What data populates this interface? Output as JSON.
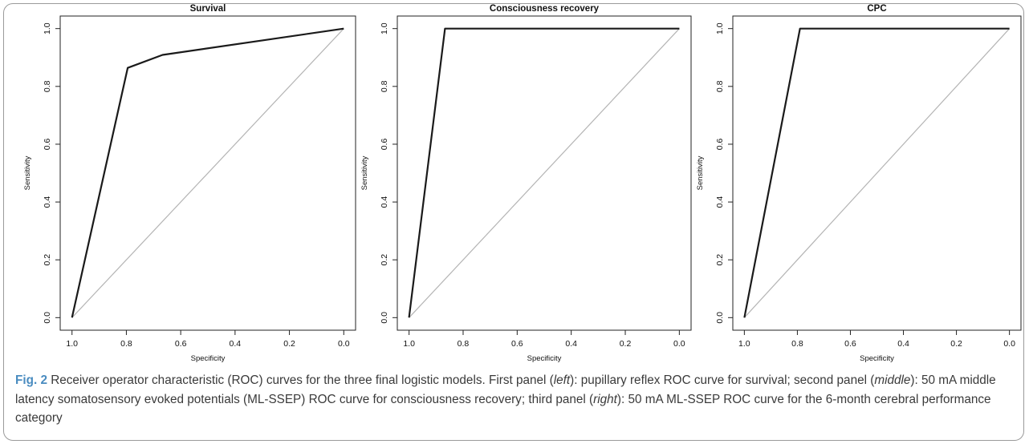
{
  "chart_data": [
    {
      "type": "line",
      "title": "Survival",
      "xlabel": "Specificity",
      "ylabel": "Sensitivity",
      "x_reversed": true,
      "xlim": [
        1.0,
        0.0
      ],
      "ylim": [
        0.0,
        1.0
      ],
      "xticks": [
        "1.0",
        "0.8",
        "0.6",
        "0.4",
        "0.2",
        "0.0"
      ],
      "yticks": [
        "0.0",
        "0.2",
        "0.4",
        "0.6",
        "0.8",
        "1.0"
      ],
      "series": [
        {
          "x": [
            1.0,
            0.795,
            0.667,
            0.0
          ],
          "y": [
            0.0,
            0.864,
            0.909,
            1.0
          ],
          "color": "#1a1a1a"
        }
      ],
      "reference_line": {
        "x": [
          1.0,
          0.0
        ],
        "y": [
          0.0,
          1.0
        ],
        "color": "#b4b4b4"
      },
      "grid": false
    },
    {
      "type": "line",
      "title": "Consciousness recovery",
      "xlabel": "Specificity",
      "ylabel": "Sensitivity",
      "x_reversed": true,
      "xlim": [
        1.0,
        0.0
      ],
      "ylim": [
        0.0,
        1.0
      ],
      "xticks": [
        "1.0",
        "0.8",
        "0.6",
        "0.4",
        "0.2",
        "0.0"
      ],
      "yticks": [
        "0.0",
        "0.2",
        "0.4",
        "0.6",
        "0.8",
        "1.0"
      ],
      "series": [
        {
          "x": [
            1.0,
            0.867,
            0.0
          ],
          "y": [
            0.0,
            1.0,
            1.0
          ],
          "color": "#1a1a1a"
        }
      ],
      "reference_line": {
        "x": [
          1.0,
          0.0
        ],
        "y": [
          0.0,
          1.0
        ],
        "color": "#b4b4b4"
      },
      "grid": false
    },
    {
      "type": "line",
      "title": "CPC",
      "xlabel": "Specificity",
      "ylabel": "Sensitivity",
      "x_reversed": true,
      "xlim": [
        1.0,
        0.0
      ],
      "ylim": [
        0.0,
        1.0
      ],
      "xticks": [
        "1.0",
        "0.8",
        "0.6",
        "0.4",
        "0.2",
        "0.0"
      ],
      "yticks": [
        "0.0",
        "0.2",
        "0.4",
        "0.6",
        "0.8",
        "1.0"
      ],
      "series": [
        {
          "x": [
            1.0,
            0.79,
            0.0
          ],
          "y": [
            0.0,
            1.0,
            1.0
          ],
          "color": "#1a1a1a"
        }
      ],
      "reference_line": {
        "x": [
          1.0,
          0.0
        ],
        "y": [
          0.0,
          1.0
        ],
        "color": "#b4b4b4"
      },
      "grid": false
    }
  ],
  "caption": {
    "label": "Fig. 2",
    "text_before_left": " Receiver operator characteristic (ROC) curves for the three final logistic models. First panel (",
    "left": "left",
    "text_before_middle": "): pupillary reflex ROC curve for survival; second panel (",
    "middle": "middle",
    "text_before_right": "): 50 mA middle latency somatosensory evoked potentials (ML-SSEP) ROC curve for consciousness recovery; third panel (",
    "right": "right",
    "text_end": "): 50 mA ML-SSEP ROC curve for the 6-month cerebral performance category"
  }
}
